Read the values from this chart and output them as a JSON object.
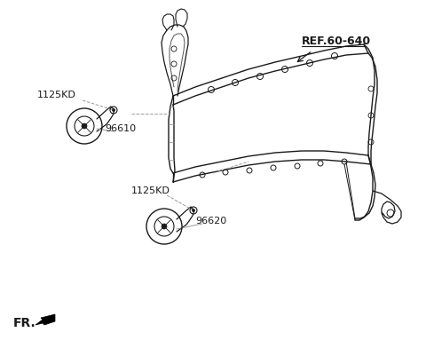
{
  "bg_color": "#ffffff",
  "line_color": "#1a1a1a",
  "dim_line_color": "#999999",
  "text_color": "#1a1a1a",
  "ref_text": "REF.60-640",
  "label_96610": "96610",
  "label_96620": "96620",
  "label_1125KD_1": "1125KD",
  "label_1125KD_2": "1125KD",
  "label_FR": "FR.",
  "figsize": [
    4.8,
    3.92
  ],
  "dpi": 100
}
